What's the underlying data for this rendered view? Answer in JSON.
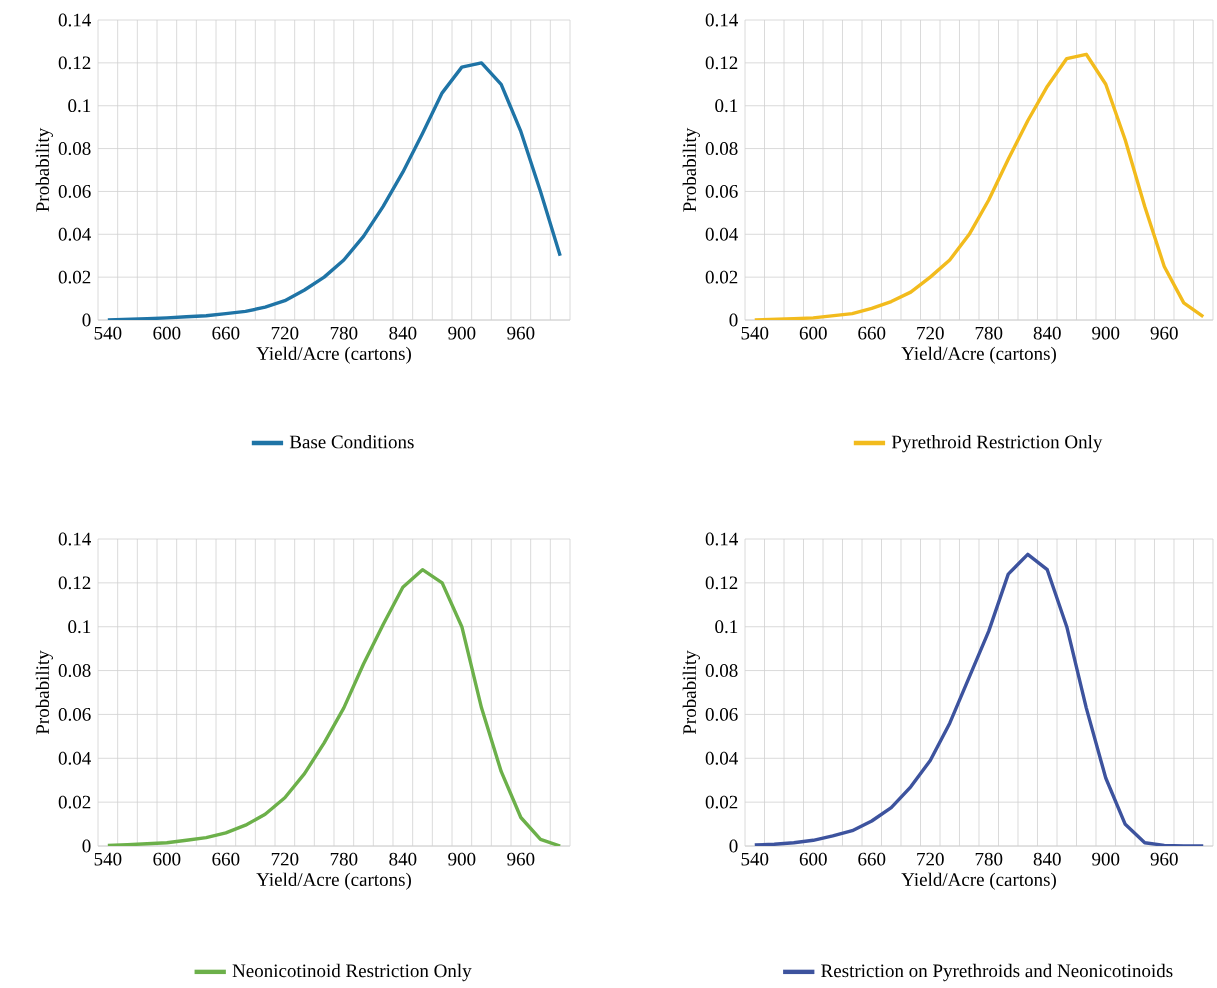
{
  "chart_data": [
    {
      "type": "line",
      "xlabel": "Yield/Acre (cartons)",
      "ylabel": "Probability",
      "categories": [
        "540",
        null,
        null,
        "600",
        null,
        null,
        "660",
        null,
        null,
        "720",
        null,
        null,
        "780",
        null,
        null,
        "840",
        null,
        null,
        "900",
        null,
        null,
        "960",
        null,
        null
      ],
      "series": [
        {
          "name": "Base Conditions",
          "color": "#1f74a6",
          "values": [
            0,
            0.0003,
            0.0006,
            0.001,
            0.0015,
            0.002,
            0.003,
            0.004,
            0.006,
            0.009,
            0.014,
            0.02,
            0.028,
            0.039,
            0.053,
            0.069,
            0.087,
            0.106,
            0.118,
            0.12,
            0.11,
            0.088,
            0.06,
            0.03
          ]
        }
      ],
      "ylim": [
        0,
        0.14
      ],
      "yticks": [
        0,
        0.02,
        0.04,
        0.06,
        0.08,
        0.1,
        0.12,
        0.14
      ],
      "grid": true,
      "legend": "bottom"
    },
    {
      "type": "line",
      "xlabel": "Yield/Acre (cartons)",
      "ylabel": "Probability",
      "categories": [
        "540",
        null,
        null,
        "600",
        null,
        null,
        "660",
        null,
        null,
        "720",
        null,
        null,
        "780",
        null,
        null,
        "840",
        null,
        null,
        "900",
        null,
        null,
        "960",
        null,
        null
      ],
      "series": [
        {
          "name": "Pyrethroid Restriction Only",
          "color": "#f2bb1d",
          "values": [
            0,
            0.0003,
            0.0006,
            0.001,
            0.002,
            0.003,
            0.0054,
            0.0086,
            0.013,
            0.02,
            0.028,
            0.04,
            0.056,
            0.075,
            0.093,
            0.109,
            0.122,
            0.124,
            0.11,
            0.084,
            0.053,
            0.025,
            0.008,
            0.0016
          ]
        }
      ],
      "ylim": [
        0,
        0.14
      ],
      "yticks": [
        0,
        0.02,
        0.04,
        0.06,
        0.08,
        0.1,
        0.12,
        0.14
      ],
      "grid": true,
      "legend": "bottom"
    },
    {
      "type": "line",
      "xlabel": "Yield/Acre (cartons)",
      "ylabel": "Probability",
      "categories": [
        "540",
        null,
        null,
        "600",
        null,
        null,
        "660",
        null,
        null,
        "720",
        null,
        null,
        "780",
        null,
        null,
        "840",
        null,
        null,
        "900",
        null,
        null,
        "960",
        null,
        null
      ],
      "series": [
        {
          "name": "Neonicotinoid Restriction Only",
          "color": "#6cb04a",
          "values": [
            0.0003,
            0.0006,
            0.001,
            0.0015,
            0.0026,
            0.0038,
            0.006,
            0.0095,
            0.0145,
            0.022,
            0.033,
            0.047,
            0.063,
            0.083,
            0.101,
            0.118,
            0.126,
            0.12,
            0.1,
            0.063,
            0.034,
            0.013,
            0.003,
            0
          ]
        }
      ],
      "ylim": [
        0,
        0.14
      ],
      "yticks": [
        0,
        0.02,
        0.04,
        0.06,
        0.08,
        0.1,
        0.12,
        0.14
      ],
      "grid": true,
      "legend": "bottom"
    },
    {
      "type": "line",
      "xlabel": "Yield/Acre (cartons)",
      "ylabel": "Probability",
      "categories": [
        "540",
        null,
        null,
        "600",
        null,
        null,
        "660",
        null,
        null,
        "720",
        null,
        null,
        "780",
        null,
        null,
        "840",
        null,
        null,
        "900",
        null,
        null,
        "960",
        null,
        null
      ],
      "series": [
        {
          "name": "Restriction on Pyrethroids and Neonicotinoids",
          "color": "#3d539e",
          "values": [
            0.0005,
            0.0008,
            0.0015,
            0.0026,
            0.0046,
            0.007,
            0.0114,
            0.0175,
            0.027,
            0.039,
            0.056,
            0.077,
            0.098,
            0.124,
            0.133,
            0.126,
            0.1,
            0.063,
            0.031,
            0.0099,
            0.0015,
            0.0003,
            0,
            0
          ]
        }
      ],
      "ylim": [
        0,
        0.14
      ],
      "yticks": [
        0,
        0.02,
        0.04,
        0.06,
        0.08,
        0.1,
        0.12,
        0.14
      ],
      "grid": true,
      "legend": "bottom"
    }
  ]
}
